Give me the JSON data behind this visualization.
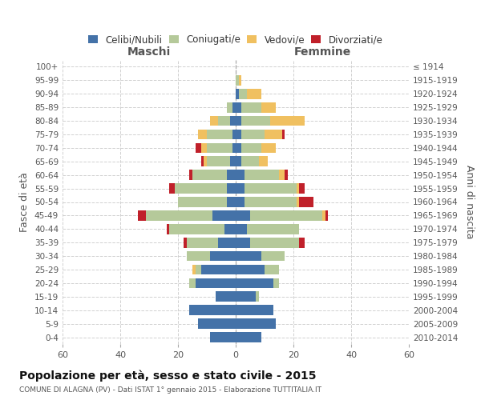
{
  "age_groups": [
    "0-4",
    "5-9",
    "10-14",
    "15-19",
    "20-24",
    "25-29",
    "30-34",
    "35-39",
    "40-44",
    "45-49",
    "50-54",
    "55-59",
    "60-64",
    "65-69",
    "70-74",
    "75-79",
    "80-84",
    "85-89",
    "90-94",
    "95-99",
    "100+"
  ],
  "birth_years": [
    "2010-2014",
    "2005-2009",
    "2000-2004",
    "1995-1999",
    "1990-1994",
    "1985-1989",
    "1980-1984",
    "1975-1979",
    "1970-1974",
    "1965-1969",
    "1960-1964",
    "1955-1959",
    "1950-1954",
    "1945-1949",
    "1940-1944",
    "1935-1939",
    "1930-1934",
    "1925-1929",
    "1920-1924",
    "1915-1919",
    "≤ 1914"
  ],
  "colors": {
    "celibi": "#4472a8",
    "coniugati": "#b5c99a",
    "vedovi": "#f0c060",
    "divorziati": "#c0202a"
  },
  "maschi": {
    "celibi": [
      9,
      13,
      16,
      7,
      14,
      12,
      9,
      6,
      4,
      8,
      3,
      3,
      3,
      2,
      1,
      1,
      2,
      1,
      0,
      0,
      0
    ],
    "coniugati": [
      0,
      0,
      0,
      0,
      2,
      2,
      8,
      11,
      19,
      23,
      17,
      18,
      12,
      8,
      9,
      9,
      4,
      2,
      0,
      0,
      0
    ],
    "vedovi": [
      0,
      0,
      0,
      0,
      0,
      1,
      0,
      0,
      0,
      0,
      0,
      0,
      0,
      1,
      2,
      3,
      3,
      0,
      0,
      0,
      0
    ],
    "divorziati": [
      0,
      0,
      0,
      0,
      0,
      0,
      0,
      1,
      1,
      3,
      0,
      2,
      1,
      1,
      2,
      0,
      0,
      0,
      0,
      0,
      0
    ]
  },
  "femmine": {
    "celibi": [
      9,
      14,
      13,
      7,
      13,
      10,
      9,
      5,
      4,
      5,
      3,
      3,
      3,
      2,
      2,
      2,
      2,
      2,
      1,
      0,
      0
    ],
    "coniugati": [
      0,
      0,
      0,
      1,
      2,
      5,
      8,
      17,
      18,
      25,
      18,
      18,
      12,
      6,
      7,
      8,
      10,
      7,
      3,
      1,
      0
    ],
    "vedovi": [
      0,
      0,
      0,
      0,
      0,
      0,
      0,
      0,
      0,
      1,
      1,
      1,
      2,
      3,
      5,
      6,
      12,
      5,
      5,
      1,
      0
    ],
    "divorziati": [
      0,
      0,
      0,
      0,
      0,
      0,
      0,
      2,
      0,
      1,
      5,
      2,
      1,
      0,
      0,
      1,
      0,
      0,
      0,
      0,
      0
    ]
  },
  "xlim": 60,
  "title": "Popolazione per età, sesso e stato civile - 2015",
  "subtitle": "COMUNE DI ALAGNA (PV) - Dati ISTAT 1° gennaio 2015 - Elaborazione TUTTITALIA.IT",
  "ylabel_left": "Fasce di età",
  "ylabel_right": "Anni di nascita",
  "xlabel_left": "Maschi",
  "xlabel_right": "Femmine",
  "bg_color": "#ffffff",
  "grid_color": "#cccccc"
}
